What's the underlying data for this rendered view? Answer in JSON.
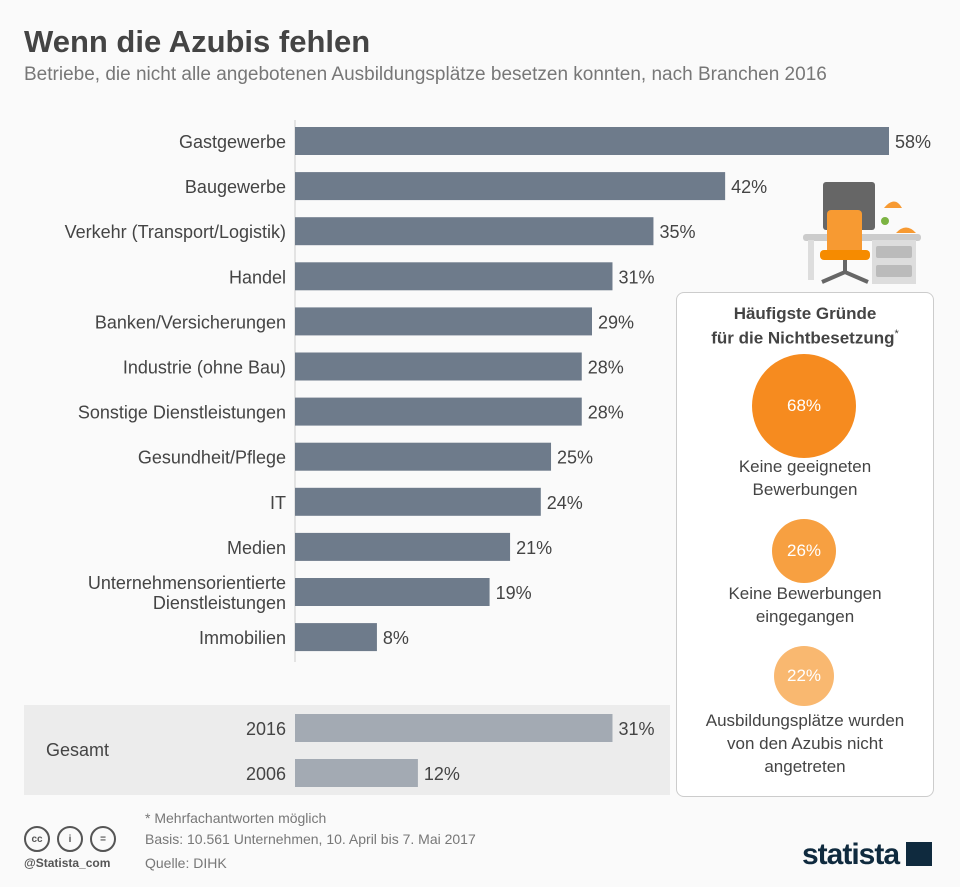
{
  "title": "Wenn die Azubis fehlen",
  "subtitle": "Betriebe, die nicht alle angebotenen Ausbildungsplätze besetzen konnten, nach Branchen 2016",
  "chart_data": {
    "type": "bar",
    "orientation": "horizontal",
    "unit": "%",
    "categories": [
      "Gastgewerbe",
      "Baugewerbe",
      "Verkehr (Transport/Logistik)",
      "Handel",
      "Banken/Versicherungen",
      "Industrie (ohne Bau)",
      "Sonstige Dienstleistungen",
      "Gesundheit/Pflege",
      "IT",
      "Medien",
      "Unternehmensorientierte|Dienstleistungen",
      "Immobilien"
    ],
    "values": [
      58,
      42,
      35,
      31,
      29,
      28,
      28,
      25,
      24,
      21,
      19,
      8
    ],
    "labels": [
      "58%",
      "42%",
      "35%",
      "31%",
      "29%",
      "28%",
      "28%",
      "25%",
      "24%",
      "21%",
      "19%",
      "8%"
    ],
    "bar_color": "#6e7b8b",
    "total": {
      "label": "Gesamt",
      "categories": [
        "2016",
        "2006"
      ],
      "values": [
        31,
        12
      ],
      "labels": [
        "31%",
        "12%"
      ],
      "bar_color": "#a3aab3"
    }
  },
  "panel": {
    "title_line1": "Häufigste Gründe",
    "title_line2": "für die Nichtbesetzung",
    "asterisk": "*",
    "reasons": [
      {
        "value": 68,
        "label": "68%",
        "text1": "Keine geeigneten",
        "text2": "Bewerbungen",
        "text3": "",
        "color": "#f68b1f"
      },
      {
        "value": 26,
        "label": "26%",
        "text1": "Keine Bewerbungen",
        "text2": "eingegangen",
        "text3": "",
        "color": "#f7a041"
      },
      {
        "value": 22,
        "label": "22%",
        "text1": "Ausbildungsplätze wurden",
        "text2": "von den Azubis nicht",
        "text3": "angetreten",
        "color": "#f9b870"
      }
    ]
  },
  "footer": {
    "note": "* Mehrfachantworten möglich",
    "basis": "Basis: 10.561 Unternehmen, 10. April bis 7. Mai 2017",
    "source": "Quelle: DIHK",
    "handle": "@Statista_com",
    "logo": "statista"
  }
}
